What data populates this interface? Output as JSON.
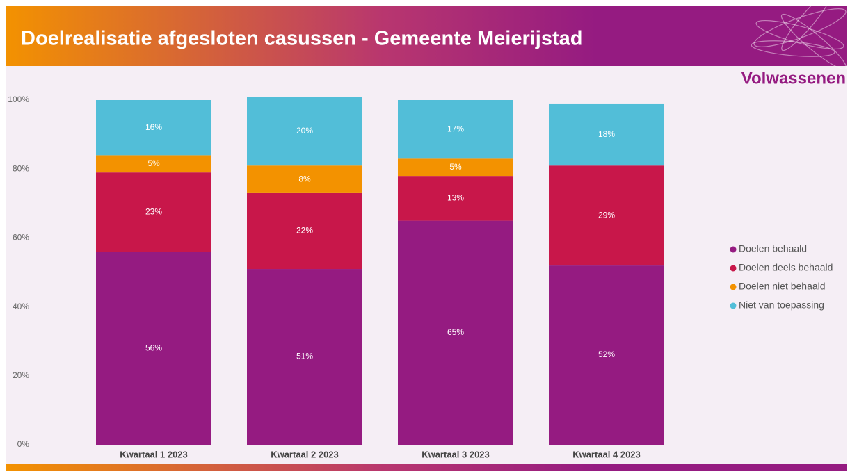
{
  "chart_data": {
    "type": "stacked_bar",
    "title": "Doelrealisatie afgesloten casussen - Gemeente Meierijstad",
    "subtitle": "Volwassenen",
    "categories": [
      "Kwartaal 1 2023",
      "Kwartaal 2 2023",
      "Kwartaal 3 2023",
      "Kwartaal 4 2023"
    ],
    "series": [
      {
        "name": "Doelen behaald",
        "color": "#951b81",
        "values": [
          56,
          51,
          65,
          52
        ],
        "value_labels": [
          "56%",
          "51%",
          "65%",
          "52%"
        ]
      },
      {
        "name": "Doelen deels behaald",
        "color": "#c8174a",
        "values": [
          23,
          22,
          13,
          29
        ],
        "value_labels": [
          "23%",
          "22%",
          "13%",
          "29%"
        ]
      },
      {
        "name": "Doelen niet behaald",
        "color": "#f39200",
        "values": [
          5,
          8,
          5,
          null
        ],
        "value_labels": [
          "5%",
          "8%",
          "5%",
          null
        ]
      },
      {
        "name": "Niet van toepassing",
        "color": "#52bed8",
        "values": [
          16,
          20,
          17,
          18
        ],
        "value_labels": [
          "16%",
          "20%",
          "17%",
          "18%"
        ]
      }
    ],
    "ylim": [
      0,
      100
    ],
    "yticks": [
      {
        "value": 0,
        "label": "0%"
      },
      {
        "value": 20,
        "label": "20%"
      },
      {
        "value": 40,
        "label": "40%"
      },
      {
        "value": 60,
        "label": "60%"
      },
      {
        "value": 80,
        "label": "80%"
      },
      {
        "value": 100,
        "label": "100%"
      }
    ],
    "grid": false,
    "legend": "right"
  }
}
